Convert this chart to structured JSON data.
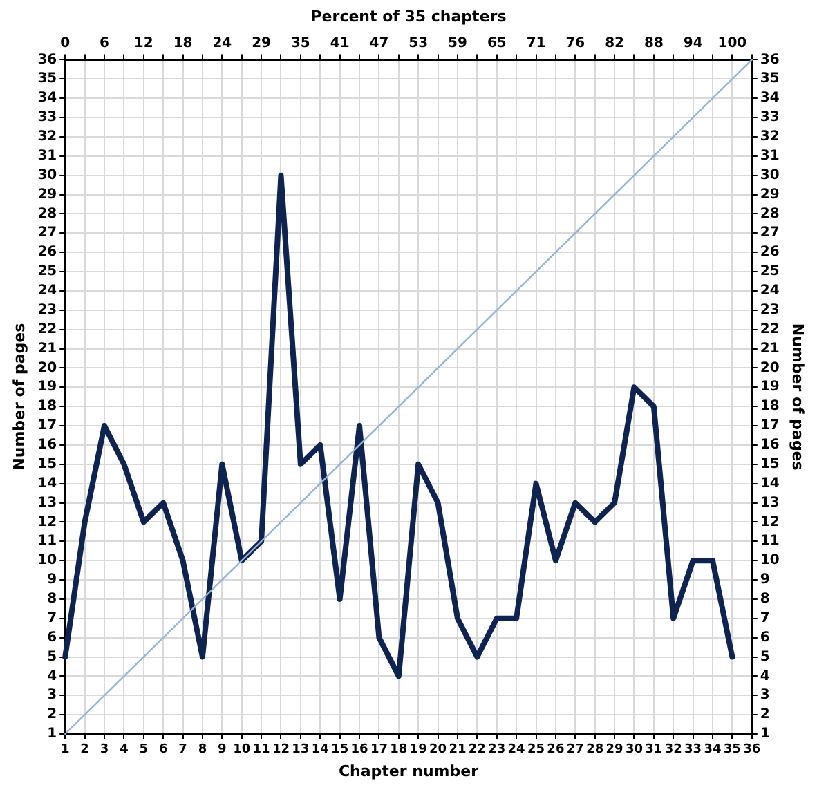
{
  "chart_data": {
    "type": "line",
    "xlabel": "Chapter number",
    "ylabel": "Number of pages",
    "y2label": "Number of pages",
    "x2label": "Percent of 35 chapters",
    "x": [
      1,
      2,
      3,
      4,
      5,
      6,
      7,
      8,
      9,
      10,
      11,
      12,
      13,
      14,
      15,
      16,
      17,
      18,
      19,
      20,
      21,
      22,
      23,
      24,
      25,
      26,
      27,
      28,
      29,
      30,
      31,
      32,
      33,
      34,
      35
    ],
    "series": [
      {
        "color": "#0f2350",
        "values": [
          5,
          12,
          17,
          15,
          12,
          13,
          10,
          5,
          15,
          10,
          11,
          30,
          15,
          16,
          8,
          17,
          6,
          4,
          15,
          13,
          7,
          5,
          7,
          7,
          14,
          10,
          13,
          12,
          13,
          19,
          18,
          7,
          10,
          10,
          5
        ]
      },
      {
        "color": "#95b3d7",
        "x": [
          1,
          36
        ],
        "values": [
          1,
          36
        ]
      }
    ],
    "xlim": [
      1,
      36
    ],
    "xticks": [
      1,
      2,
      3,
      4,
      5,
      6,
      7,
      8,
      9,
      10,
      11,
      12,
      13,
      14,
      15,
      16,
      17,
      18,
      19,
      20,
      21,
      22,
      23,
      24,
      25,
      26,
      27,
      28,
      29,
      30,
      31,
      32,
      33,
      34,
      35,
      36
    ],
    "ylim": [
      1,
      36
    ],
    "yticks": [
      1,
      2,
      3,
      4,
      5,
      6,
      7,
      8,
      9,
      10,
      11,
      12,
      13,
      14,
      15,
      16,
      17,
      18,
      19,
      20,
      21,
      22,
      23,
      24,
      25,
      26,
      27,
      28,
      29,
      30,
      31,
      32,
      33,
      34,
      35,
      36
    ],
    "y2lim": [
      1,
      36
    ],
    "y2ticks": [
      1,
      2,
      3,
      4,
      5,
      6,
      7,
      8,
      9,
      10,
      11,
      12,
      13,
      14,
      15,
      16,
      17,
      18,
      19,
      20,
      21,
      22,
      23,
      24,
      25,
      26,
      27,
      28,
      29,
      30,
      31,
      32,
      33,
      34,
      35,
      36
    ],
    "x2lim": [
      0,
      102.94
    ],
    "x2ticks": [
      0,
      {
        "value": 2.94,
        "label": null
      },
      {
        "value": 5.88,
        "label": "6"
      },
      {
        "value": 8.82,
        "label": null
      },
      {
        "value": 11.76,
        "label": "12"
      },
      {
        "value": 14.71,
        "label": null
      },
      {
        "value": 17.65,
        "label": "18"
      },
      {
        "value": 20.59,
        "label": null
      },
      {
        "value": 23.53,
        "label": "24"
      },
      {
        "value": 26.47,
        "label": null
      },
      {
        "value": 29.41,
        "label": "29"
      },
      {
        "value": 32.35,
        "label": null
      },
      {
        "value": 35.29,
        "label": "35"
      },
      {
        "value": 38.24,
        "label": null
      },
      {
        "value": 41.18,
        "label": "41"
      },
      {
        "value": 44.12,
        "label": null
      },
      {
        "value": 47.06,
        "label": "47"
      },
      {
        "value": 50,
        "label": null
      },
      {
        "value": 52.94,
        "label": "53"
      },
      {
        "value": 55.88,
        "label": null
      },
      {
        "value": 58.82,
        "label": "59"
      },
      {
        "value": 61.76,
        "label": null
      },
      {
        "value": 64.71,
        "label": "65"
      },
      {
        "value": 67.65,
        "label": null
      },
      {
        "value": 70.59,
        "label": "71"
      },
      {
        "value": 73.53,
        "label": null
      },
      {
        "value": 76.47,
        "label": "76"
      },
      {
        "value": 79.41,
        "label": null
      },
      {
        "value": 82.35,
        "label": "82"
      },
      {
        "value": 85.29,
        "label": null
      },
      {
        "value": 88.24,
        "label": "88"
      },
      {
        "value": 91.18,
        "label": null
      },
      {
        "value": 94.12,
        "label": "94"
      },
      {
        "value": 97.06,
        "label": null
      },
      100,
      {
        "value": 102.94,
        "label": null
      }
    ],
    "grid": true,
    "legend": false,
    "marker": "none",
    "line_style": "solid"
  }
}
